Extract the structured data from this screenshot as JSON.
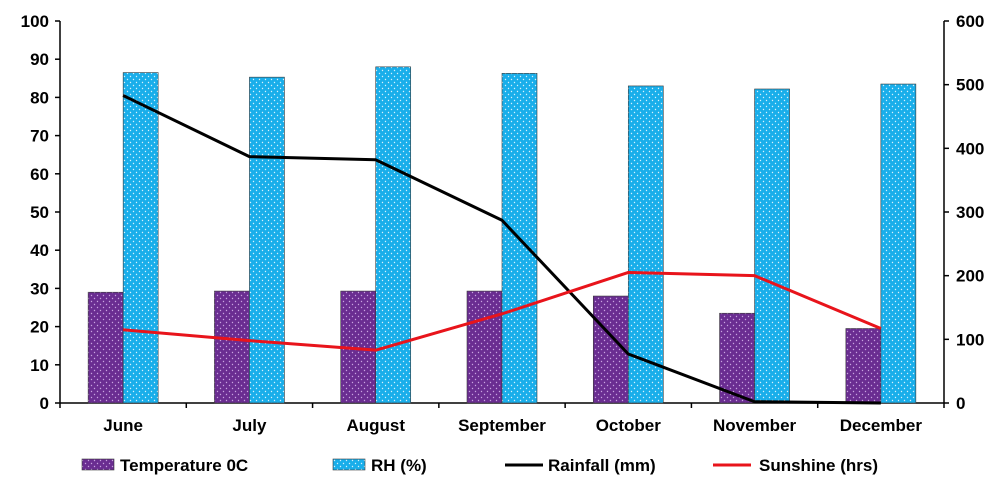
{
  "chart_data": {
    "type": "bar",
    "title": "",
    "categories": [
      "June",
      "July",
      "August",
      "September",
      "October",
      "November",
      "December"
    ],
    "y_left": {
      "min": 0,
      "max": 100,
      "step": 10,
      "ticks": [
        "0",
        "10",
        "20",
        "30",
        "40",
        "50",
        "60",
        "70",
        "80",
        "90",
        "100"
      ]
    },
    "y_right": {
      "min": 0,
      "max": 600,
      "step": 100,
      "ticks": [
        "0",
        "100",
        "200",
        "300",
        "400",
        "500",
        "600"
      ]
    },
    "grid": false,
    "legend_position": "bottom",
    "series": [
      {
        "name": "Temperature 0C",
        "type": "bar",
        "axis": "left",
        "color": "#6a2d91",
        "pattern": "dots",
        "values": [
          29,
          29.3,
          29.3,
          29.3,
          28,
          23.5,
          19.5
        ]
      },
      {
        "name": "RH (%)",
        "type": "bar",
        "axis": "left",
        "color": "#19aeea",
        "pattern": "dots",
        "values": [
          86.5,
          85.3,
          88,
          86.3,
          83,
          82.2,
          83.5
        ]
      },
      {
        "name": "Rainfall (mm)",
        "type": "line",
        "axis": "right",
        "color": "#000000",
        "values": [
          483,
          387,
          382,
          287,
          77,
          2,
          0
        ]
      },
      {
        "name": "Sunshine (hrs)",
        "type": "line",
        "axis": "right",
        "color": "#e8141b",
        "values": [
          115,
          98,
          83,
          140,
          205,
          200,
          117
        ]
      }
    ]
  }
}
